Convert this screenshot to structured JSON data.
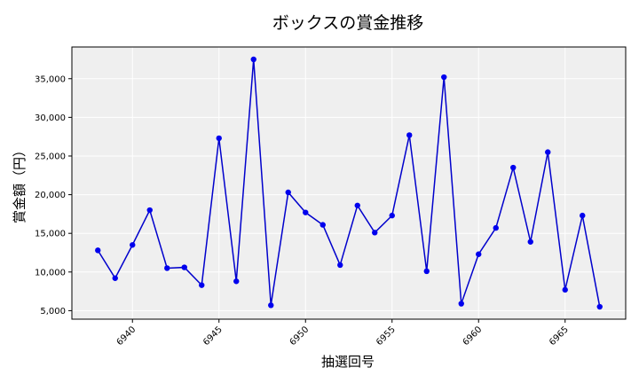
{
  "chart_data": {
    "type": "line",
    "title": "ボックスの賞金推移",
    "xlabel": "抽選回号",
    "ylabel": "賞金額（円）",
    "x": [
      6938,
      6939,
      6940,
      6941,
      6942,
      6943,
      6944,
      6945,
      6946,
      6947,
      6948,
      6949,
      6950,
      6951,
      6952,
      6953,
      6954,
      6955,
      6956,
      6957,
      6958,
      6959,
      6960,
      6961,
      6962,
      6963,
      6964,
      6965,
      6966,
      6967
    ],
    "series": [
      {
        "values": [
          12800,
          9200,
          13500,
          18000,
          10500,
          10600,
          8300,
          27300,
          8800,
          37500,
          5700,
          20300,
          17700,
          16100,
          10900,
          18600,
          15100,
          17300,
          27700,
          10100,
          35200,
          5900,
          12300,
          15700,
          23500,
          13900,
          25500,
          7700,
          17300,
          5500
        ]
      }
    ],
    "xticks": [
      "6940",
      "6945",
      "6950",
      "6955",
      "6960",
      "6965"
    ],
    "yticks": [
      "5,000",
      "10,000",
      "15,000",
      "20,000",
      "25,000",
      "30,000",
      "35,000"
    ],
    "xlim": [
      6936.5,
      6968.5
    ],
    "ylim": [
      3900,
      39100
    ],
    "grid": true,
    "line_color": "#0000cc",
    "marker_color": "#0000ee",
    "background_color": "#efefef"
  }
}
